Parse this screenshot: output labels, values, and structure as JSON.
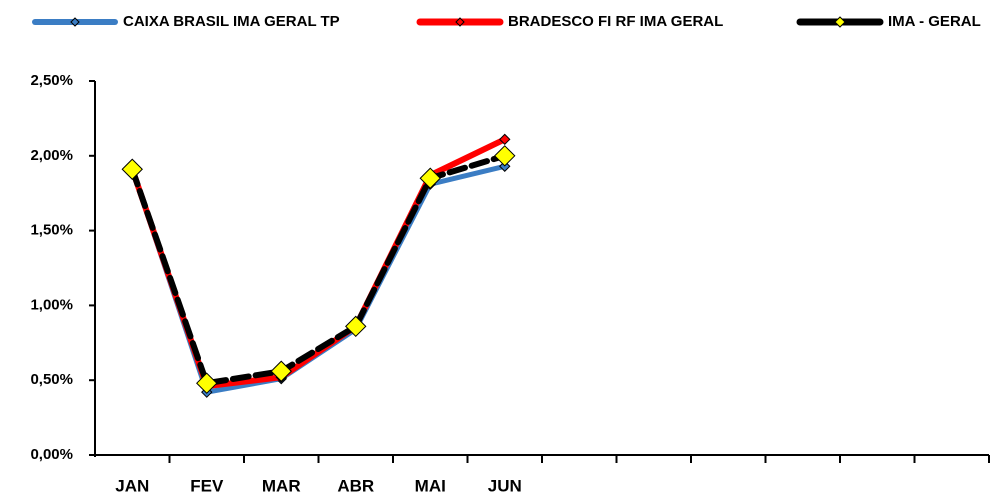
{
  "chart_data": {
    "type": "line",
    "categories": [
      "JAN",
      "FEV",
      "MAR",
      "ABR",
      "MAI",
      "JUN",
      null,
      null,
      null,
      null,
      null,
      null
    ],
    "series": [
      {
        "name": "CAIXA BRASIL IMA GERAL TP",
        "color": "#3b7dc4",
        "values": [
          1.91,
          0.42,
          0.51,
          0.84,
          1.81,
          1.93,
          null,
          null,
          null,
          null,
          null,
          null
        ]
      },
      {
        "name": "BRADESCO FI RF IMA GERAL",
        "color": "#ff0000",
        "values": [
          1.91,
          0.46,
          0.52,
          0.86,
          1.87,
          2.11,
          null,
          null,
          null,
          null,
          null,
          null
        ]
      },
      {
        "name": "IMA - GERAL",
        "color": "#000000",
        "values": [
          1.91,
          0.48,
          0.56,
          0.86,
          1.85,
          2.0,
          null,
          null,
          null,
          null,
          null,
          null
        ]
      }
    ],
    "ylim": [
      0,
      2.5
    ],
    "yticks": [
      {
        "value": 0,
        "label": "0,00%"
      },
      {
        "value": 0.5,
        "label": "0,50%"
      },
      {
        "value": 1,
        "label": "1,00%"
      },
      {
        "value": 1.5,
        "label": "1,50%"
      },
      {
        "value": 2,
        "label": "2,00%"
      },
      {
        "value": 2.5,
        "label": "2,50%"
      }
    ],
    "grid": false,
    "legend": "top"
  }
}
